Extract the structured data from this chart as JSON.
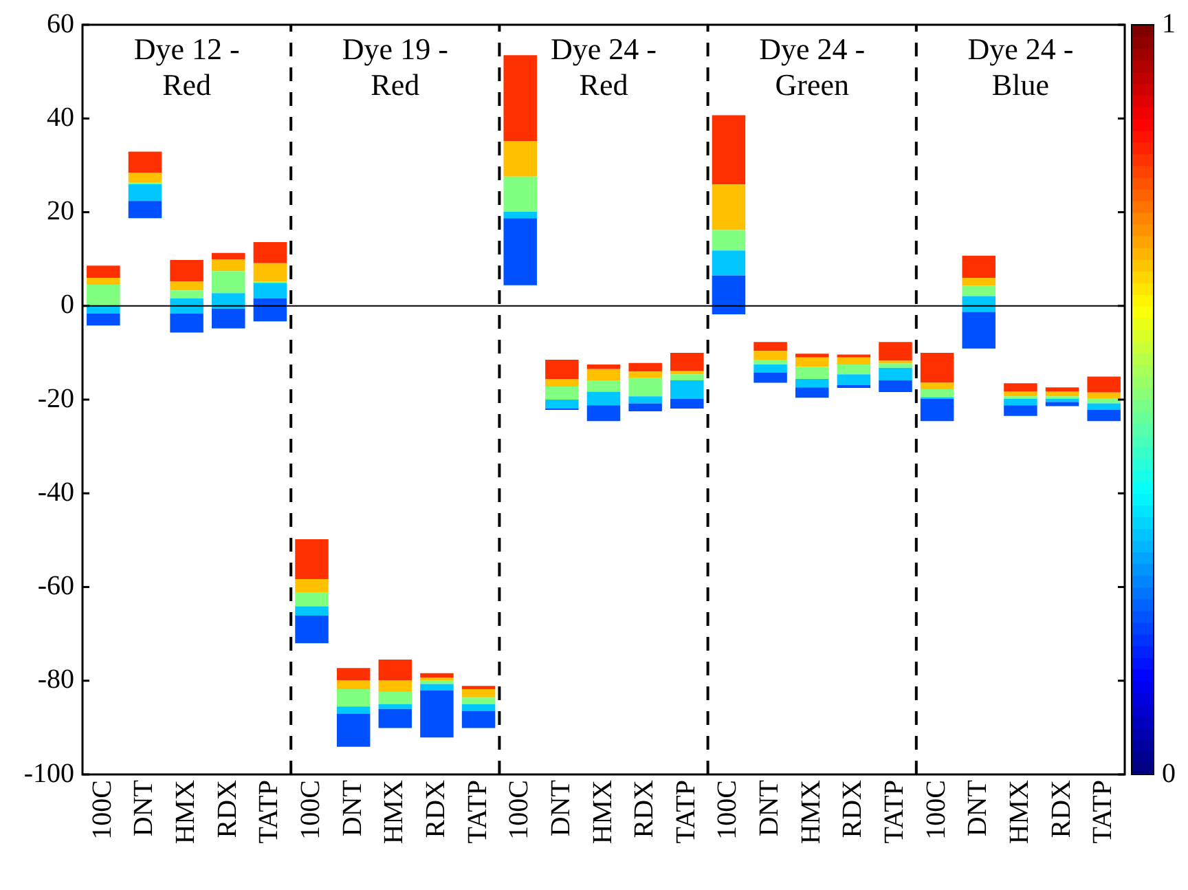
{
  "chart_data": {
    "type": "bar",
    "categories": [
      "100C",
      "DNT",
      "HMX",
      "RDX",
      "TATP",
      "100C",
      "DNT",
      "HMX",
      "RDX",
      "TATP",
      "100C",
      "DNT",
      "HMX",
      "RDX",
      "TATP",
      "100C",
      "DNT",
      "HMX",
      "RDX",
      "TATP",
      "100C",
      "DNT",
      "HMX",
      "RDX",
      "TATP"
    ],
    "series": [
      {
        "color": "#0050ff",
        "base": [
          -4.2,
          18.7,
          -5.7,
          -4.8,
          -3.3,
          -72.0,
          -94.1,
          -90.1,
          -92.1,
          -90.1,
          4.4,
          -22.2,
          -24.6,
          -22.5,
          -21.9,
          -1.8,
          -16.4,
          -19.6,
          -17.5,
          -18.4,
          -24.6,
          -9.1,
          -23.5,
          -21.4,
          -24.6
        ],
        "values": [
          2.6,
          3.7,
          4.1,
          4.2,
          4.9,
          5.9,
          7.1,
          4.1,
          10.0,
          3.6,
          14.3,
          0.3,
          3.4,
          1.7,
          2.1,
          8.3,
          2.2,
          2.2,
          0.6,
          2.5,
          4.8,
          7.8,
          2.3,
          0.9,
          2.4
        ]
      },
      {
        "color": "#00c8ff",
        "base": [
          -1.6,
          22.4,
          -1.6,
          -0.6,
          1.6,
          -66.1,
          -87.0,
          -86.0,
          -82.1,
          -86.5,
          18.7,
          -21.9,
          -21.2,
          -20.8,
          -19.8,
          6.5,
          -14.2,
          -17.4,
          -16.9,
          -15.9,
          -19.8,
          -1.3,
          -21.2,
          -20.5,
          -22.2
        ],
        "values": [
          1.6,
          3.6,
          3.2,
          3.3,
          3.3,
          2.0,
          1.5,
          1.0,
          1.4,
          1.5,
          1.4,
          1.9,
          2.9,
          1.5,
          3.9,
          5.3,
          1.7,
          1.8,
          2.3,
          2.7,
          0.3,
          3.4,
          1.4,
          0.7,
          1.4
        ]
      },
      {
        "color": "#80ff80",
        "base": [
          0.0,
          26.0,
          1.6,
          2.7,
          4.9,
          -64.1,
          -85.5,
          -85.0,
          -80.7,
          -85.0,
          20.1,
          -20.0,
          -18.3,
          -19.3,
          -15.9,
          11.8,
          -12.5,
          -15.6,
          -14.6,
          -13.2,
          -19.5,
          2.1,
          -19.8,
          -19.8,
          -20.8
        ],
        "values": [
          4.5,
          0.4,
          1.7,
          4.7,
          0.3,
          2.9,
          3.7,
          2.6,
          0.7,
          1.4,
          7.5,
          2.8,
          2.4,
          3.9,
          1.3,
          4.4,
          1.0,
          2.6,
          2.1,
          0.9,
          1.7,
          2.2,
          0.5,
          0.5,
          1.0
        ]
      },
      {
        "color": "#ffc000",
        "base": [
          4.5,
          26.4,
          3.3,
          7.4,
          5.2,
          -61.2,
          -81.8,
          -82.4,
          -80.0,
          -83.6,
          27.6,
          -17.2,
          -15.9,
          -15.4,
          -14.6,
          16.2,
          -11.5,
          -13.0,
          -12.5,
          -12.3,
          -17.8,
          4.3,
          -19.3,
          -19.3,
          -19.8
        ],
        "values": [
          1.5,
          2.0,
          1.9,
          2.5,
          3.9,
          2.9,
          1.9,
          2.5,
          0.7,
          1.8,
          7.6,
          1.6,
          2.4,
          1.4,
          0.7,
          9.7,
          1.9,
          2.0,
          1.5,
          0.6,
          1.4,
          1.7,
          1.0,
          1.0,
          1.3
        ]
      },
      {
        "color": "#ff3000",
        "base": [
          6.0,
          28.4,
          5.2,
          9.9,
          9.1,
          -58.3,
          -79.9,
          -79.9,
          -79.3,
          -81.8,
          35.2,
          -15.6,
          -13.5,
          -14.0,
          -13.9,
          25.9,
          -9.6,
          -11.0,
          -11.0,
          -11.7,
          -16.4,
          6.0,
          -18.3,
          -18.3,
          -18.5
        ],
        "values": [
          2.6,
          4.5,
          4.6,
          1.4,
          4.5,
          8.5,
          2.6,
          4.4,
          0.9,
          0.7,
          18.3,
          4.1,
          1.0,
          1.8,
          3.9,
          14.8,
          1.9,
          0.8,
          0.6,
          4.0,
          6.4,
          4.7,
          1.8,
          0.9,
          3.4
        ]
      }
    ],
    "ylim": [
      -100,
      60
    ],
    "yticks": [
      -100,
      -80,
      -60,
      -40,
      -20,
      0,
      20,
      40,
      60
    ],
    "clim": [
      0,
      1
    ],
    "cticks": [
      0,
      1
    ],
    "ref_lines": [
      {
        "axis": "y",
        "value": 0,
        "color": "#000000",
        "line_style": "solid"
      }
    ],
    "annotations": [
      "Dye 12 - Red",
      "Dye 19 - Red",
      "Dye 24 - Red",
      "Dye 24 - Green",
      "Dye 24 - Blue"
    ],
    "grid": false,
    "legend": false
  }
}
